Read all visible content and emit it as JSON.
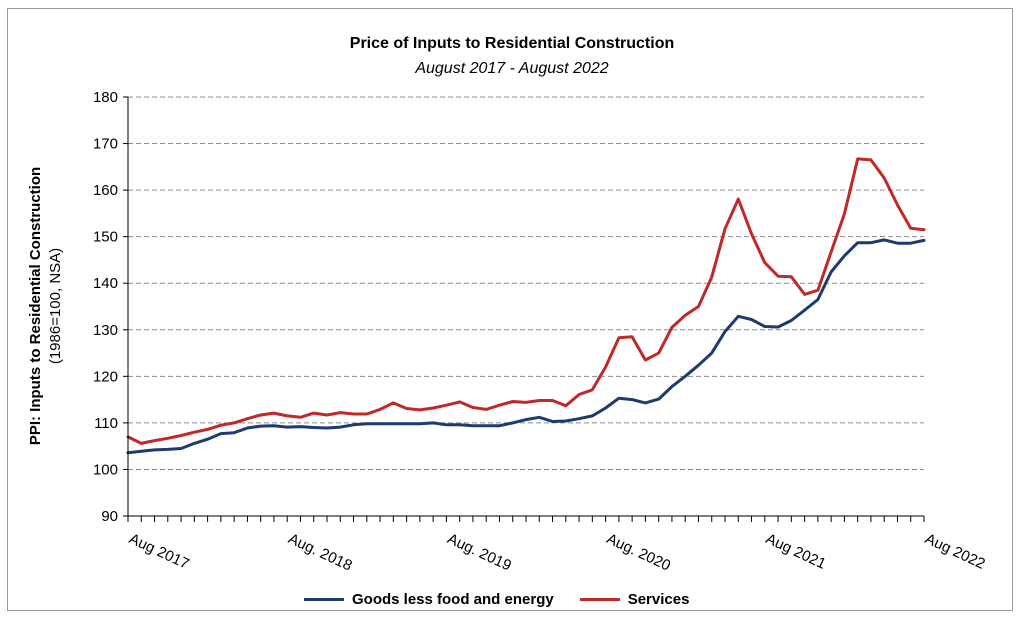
{
  "chart_data": {
    "type": "line",
    "title": "Price of Inputs to Residential Construction",
    "subtitle": "August 2017 - August 2022",
    "ylabel": "PPI: Inputs to Residential Construction",
    "ylabel_sub": "(1986=100, NSA)",
    "ylim": [
      90,
      180
    ],
    "yticks": [
      90,
      100,
      110,
      120,
      130,
      140,
      150,
      160,
      170,
      180
    ],
    "grid": "horizontal dashed",
    "legend_position": "bottom",
    "x": [
      "2017-08",
      "2017-09",
      "2017-10",
      "2017-11",
      "2017-12",
      "2018-01",
      "2018-02",
      "2018-03",
      "2018-04",
      "2018-05",
      "2018-06",
      "2018-07",
      "2018-08",
      "2018-09",
      "2018-10",
      "2018-11",
      "2018-12",
      "2019-01",
      "2019-02",
      "2019-03",
      "2019-04",
      "2019-05",
      "2019-06",
      "2019-07",
      "2019-08",
      "2019-09",
      "2019-10",
      "2019-11",
      "2019-12",
      "2020-01",
      "2020-02",
      "2020-03",
      "2020-04",
      "2020-05",
      "2020-06",
      "2020-07",
      "2020-08",
      "2020-09",
      "2020-10",
      "2020-11",
      "2020-12",
      "2021-01",
      "2021-02",
      "2021-03",
      "2021-04",
      "2021-05",
      "2021-06",
      "2021-07",
      "2021-08",
      "2021-09",
      "2021-10",
      "2021-11",
      "2021-12",
      "2022-01",
      "2022-02",
      "2022-03",
      "2022-04",
      "2022-05",
      "2022-06",
      "2022-07",
      "2022-08"
    ],
    "x_tick_labels": [
      {
        "label": "Aug 2017",
        "index": 0
      },
      {
        "label": "Aug. 2018",
        "index": 12
      },
      {
        "label": "Aug. 2019",
        "index": 24
      },
      {
        "label": "Aug. 2020",
        "index": 36
      },
      {
        "label": "Aug 2021",
        "index": 48
      },
      {
        "label": "Aug 2022",
        "index": 60
      }
    ],
    "series": [
      {
        "name": "Goods less food and energy",
        "color": "#1f3a6e",
        "values": [
          103.6,
          103.9,
          104.2,
          104.3,
          104.5,
          105.6,
          106.5,
          107.7,
          107.9,
          108.9,
          109.3,
          109.4,
          109.1,
          109.2,
          109.0,
          108.9,
          109.1,
          109.6,
          109.8,
          109.8,
          109.8,
          109.8,
          109.8,
          110.0,
          109.6,
          109.6,
          109.4,
          109.4,
          109.4,
          110.0,
          110.7,
          111.2,
          110.3,
          110.4,
          110.9,
          111.5,
          113.2,
          115.3,
          115.0,
          114.3,
          115.1,
          117.8,
          120.0,
          122.4,
          125.0,
          129.6,
          132.9,
          132.2,
          130.7,
          130.6,
          132.0,
          134.2,
          136.5,
          142.4,
          145.9,
          148.7,
          148.7,
          149.3,
          148.6,
          148.6,
          149.2
        ]
      },
      {
        "name": "Services",
        "color": "#c0282a",
        "values": [
          107.0,
          105.6,
          106.2,
          106.7,
          107.3,
          108.0,
          108.6,
          109.5,
          110.0,
          110.9,
          111.7,
          112.1,
          111.5,
          111.2,
          112.1,
          111.7,
          112.2,
          111.9,
          111.9,
          112.9,
          114.3,
          113.1,
          112.8,
          113.2,
          113.8,
          114.5,
          113.3,
          112.9,
          113.8,
          114.6,
          114.4,
          114.8,
          114.8,
          113.7,
          116.1,
          117.1,
          122.0,
          128.3,
          128.5,
          123.5,
          125.0,
          130.5,
          133.1,
          135.0,
          141.3,
          151.7,
          158.1,
          150.6,
          144.4,
          141.5,
          141.4,
          137.6,
          138.5,
          146.7,
          154.9,
          166.7,
          166.5,
          162.6,
          156.8,
          151.8,
          151.5
        ]
      }
    ]
  }
}
